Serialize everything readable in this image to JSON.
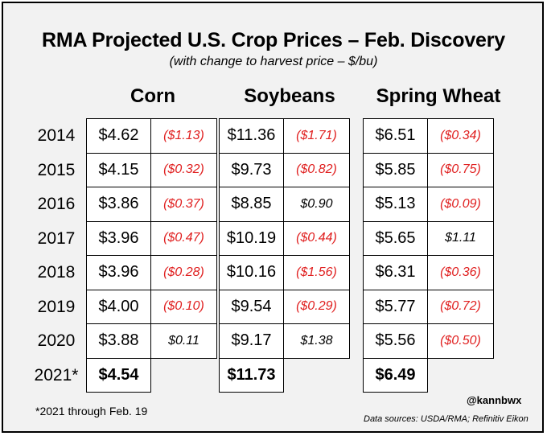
{
  "chart_data": {
    "type": "table",
    "title": "RMA Projected U.S. Crop Prices – Feb. Discovery",
    "subtitle": "(with change to harvest price – $/bu)",
    "crops": [
      "Corn",
      "Soybeans",
      "Spring Wheat"
    ],
    "rows": [
      {
        "year": "2014",
        "cells": [
          {
            "price": "$4.62",
            "change": "($1.13)",
            "neg": true
          },
          {
            "price": "$11.36",
            "change": "($1.71)",
            "neg": true
          },
          {
            "price": "$6.51",
            "change": "($0.34)",
            "neg": true
          }
        ]
      },
      {
        "year": "2015",
        "cells": [
          {
            "price": "$4.15",
            "change": "($0.32)",
            "neg": true
          },
          {
            "price": "$9.73",
            "change": "($0.82)",
            "neg": true
          },
          {
            "price": "$5.85",
            "change": "($0.75)",
            "neg": true
          }
        ]
      },
      {
        "year": "2016",
        "cells": [
          {
            "price": "$3.86",
            "change": "($0.37)",
            "neg": true
          },
          {
            "price": "$8.85",
            "change": "$0.90",
            "neg": false
          },
          {
            "price": "$5.13",
            "change": "($0.09)",
            "neg": true
          }
        ]
      },
      {
        "year": "2017",
        "cells": [
          {
            "price": "$3.96",
            "change": "($0.47)",
            "neg": true
          },
          {
            "price": "$10.19",
            "change": "($0.44)",
            "neg": true
          },
          {
            "price": "$5.65",
            "change": "$1.11",
            "neg": false
          }
        ]
      },
      {
        "year": "2018",
        "cells": [
          {
            "price": "$3.96",
            "change": "($0.28)",
            "neg": true
          },
          {
            "price": "$10.16",
            "change": "($1.56)",
            "neg": true
          },
          {
            "price": "$6.31",
            "change": "($0.36)",
            "neg": true
          }
        ]
      },
      {
        "year": "2019",
        "cells": [
          {
            "price": "$4.00",
            "change": "($0.10)",
            "neg": true
          },
          {
            "price": "$9.54",
            "change": "($0.29)",
            "neg": true
          },
          {
            "price": "$5.77",
            "change": "($0.72)",
            "neg": true
          }
        ]
      },
      {
        "year": "2020",
        "cells": [
          {
            "price": "$3.88",
            "change": "$0.11",
            "neg": false
          },
          {
            "price": "$9.17",
            "change": "$1.38",
            "neg": false
          },
          {
            "price": "$5.56",
            "change": "($0.50)",
            "neg": true
          }
        ]
      },
      {
        "year": "2021*",
        "cells": [
          {
            "price": "$4.54",
            "change": null
          },
          {
            "price": "$11.73",
            "change": null
          },
          {
            "price": "$6.49",
            "change": null
          }
        ]
      }
    ],
    "colors": {
      "negative_change": "#e02020",
      "positive_change": "#000000",
      "background": "#f2f2f2",
      "cell": "#ffffff"
    }
  },
  "footnote": "*2021 through Feb. 19",
  "handle": "@kannbwx",
  "sources": "Data sources: USDA/RMA; Refinitiv Eikon"
}
